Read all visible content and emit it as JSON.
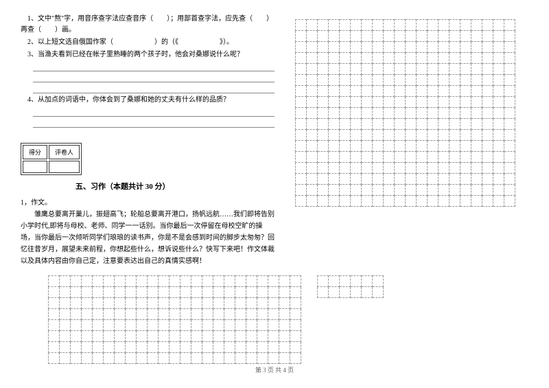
{
  "questions": {
    "q1": "1、文中\"熬\"字，用音序查字法应查音序（　　）；用部首查字法，应先查（　　）再查（　　）画。",
    "q2": "2、以上短文选自俄国作家（　　　　　　）的（《　　　　　　》）。",
    "q3": "3、当渔夫看到已经在帐子里熟睡的两个孩子时，他会对桑娜说什么呢？",
    "q4": "4、从加点的词语中，你体会到了桑娜和她的丈夫有什么样的品质？"
  },
  "score_box": {
    "col1": "得分",
    "col2": "评卷人"
  },
  "section_title": "五、习作（本题共计 30 分）",
  "essay": {
    "title": "1，作文。",
    "body": "雏鹰总要离开巢儿，振翅高飞；轮船总要离开港口，扬帆远航……我们即将告别小学时代,即将与母校、老师、同学一一话别。当你最后一次停留在母校空旷的操场，当你最后一次倾听同学们琅琅的读书声，你是不是会感到时间的脚步太匆匆？回忆往昔岁月，展望未来前程，你想起些什么，想诉说些什么？快写下来吧！作文体裁以及具体内容由你自己定，注意要表达出自己的真情实感啊！"
  },
  "footer_text": "第 3 页 共 4 页",
  "grid": {
    "right_rows": 17,
    "right_cols": 20,
    "bottom_rows": 8,
    "bottom_cols": 23,
    "bottom2_rows": 2,
    "bottom2_cols": 6,
    "cell_size": 16,
    "border_color": "#999999"
  },
  "colors": {
    "text": "#000000",
    "background": "#ffffff",
    "footer": "#666666",
    "line": "#888888"
  },
  "fonts": {
    "body_size": 10,
    "title_size": 11,
    "footer_size": 9
  }
}
